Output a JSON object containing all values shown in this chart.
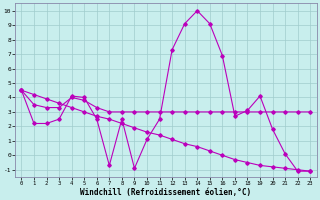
{
  "xlabel": "Windchill (Refroidissement éolien,°C)",
  "xlim_min": -0.5,
  "xlim_max": 23.5,
  "ylim_min": -1.5,
  "ylim_max": 10.5,
  "xticks": [
    0,
    1,
    2,
    3,
    4,
    5,
    6,
    7,
    8,
    9,
    10,
    11,
    12,
    13,
    14,
    15,
    16,
    17,
    18,
    19,
    20,
    21,
    22,
    23
  ],
  "yticks": [
    -1,
    0,
    1,
    2,
    3,
    4,
    5,
    6,
    7,
    8,
    9,
    10
  ],
  "background_color": "#c8eeed",
  "grid_color": "#a0cccc",
  "line_color": "#bb00bb",
  "line1_x": [
    0,
    1,
    2,
    3,
    4,
    5,
    6,
    7,
    8,
    9,
    10,
    11,
    12,
    13,
    14,
    15,
    16,
    17,
    18,
    19,
    20,
    21,
    22,
    23
  ],
  "line1_y": [
    4.5,
    2.2,
    2.2,
    2.5,
    4.1,
    4.0,
    2.5,
    -0.7,
    2.5,
    -0.9,
    1.1,
    2.5,
    7.3,
    9.1,
    10.0,
    9.1,
    6.9,
    2.7,
    3.1,
    4.1,
    1.8,
    0.1,
    -1.1,
    -1.1
  ],
  "line2_x": [
    0,
    1,
    2,
    3,
    4,
    5,
    6,
    7,
    8,
    9,
    10,
    11,
    12,
    13,
    14,
    15,
    16,
    17,
    18,
    19,
    20,
    21,
    22,
    23
  ],
  "line2_y": [
    4.5,
    3.5,
    3.3,
    3.3,
    4.0,
    3.8,
    3.3,
    3.0,
    3.0,
    3.0,
    3.0,
    3.0,
    3.0,
    3.0,
    3.0,
    3.0,
    3.0,
    3.0,
    3.0,
    3.0,
    3.0,
    3.0,
    3.0,
    3.0
  ],
  "line3_x": [
    0,
    1,
    2,
    3,
    4,
    5,
    6,
    7,
    8,
    9,
    10,
    11,
    12,
    13,
    14,
    15,
    16,
    17,
    18,
    19,
    20,
    21,
    22,
    23
  ],
  "line3_y": [
    4.5,
    4.2,
    3.9,
    3.6,
    3.3,
    3.0,
    2.7,
    2.5,
    2.2,
    1.9,
    1.6,
    1.4,
    1.1,
    0.8,
    0.6,
    0.3,
    0.0,
    -0.3,
    -0.5,
    -0.7,
    -0.8,
    -0.9,
    -1.0,
    -1.1
  ]
}
